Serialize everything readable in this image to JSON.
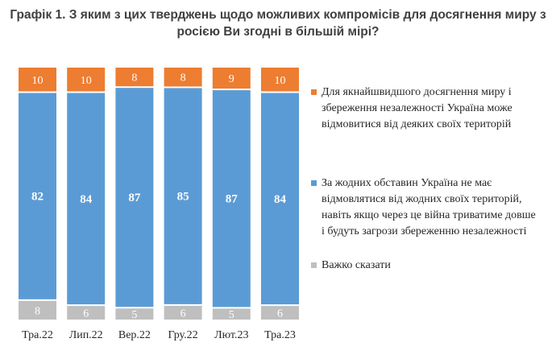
{
  "chart_data": {
    "type": "bar",
    "stacked": true,
    "title_line1": "Графік 1. З яким з цих тверджень щодо можливих компромісів для досягнення миру з",
    "title_line2": "росією Ви згодні в більшій мірі?",
    "categories": [
      "Тра.22",
      "Лип.22",
      "Вер.22",
      "Гру.22",
      "Лют.23",
      "Тра.23"
    ],
    "series": [
      {
        "name": "Важко сказати",
        "color": "#bfbfbf",
        "values": [
          8,
          6,
          5,
          6,
          5,
          6
        ]
      },
      {
        "name": "За жодних обставин Україна не має відмовлятися від жодних своїх територій, навіть якщо через це війна триватиме довше і будуть загрози збереженню незалежності",
        "color": "#5b9bd5",
        "values": [
          82,
          84,
          87,
          85,
          87,
          84
        ]
      },
      {
        "name": "Для якнайшвидшого досягнення миру і збереження незалежності Україна може відмовитися від деяких своїх територій",
        "color": "#ed7d31",
        "values": [
          10,
          10,
          8,
          8,
          9,
          10
        ]
      }
    ],
    "legend_order": [
      2,
      1,
      0
    ],
    "legend_position": "right",
    "ylim": [
      0,
      100
    ]
  }
}
